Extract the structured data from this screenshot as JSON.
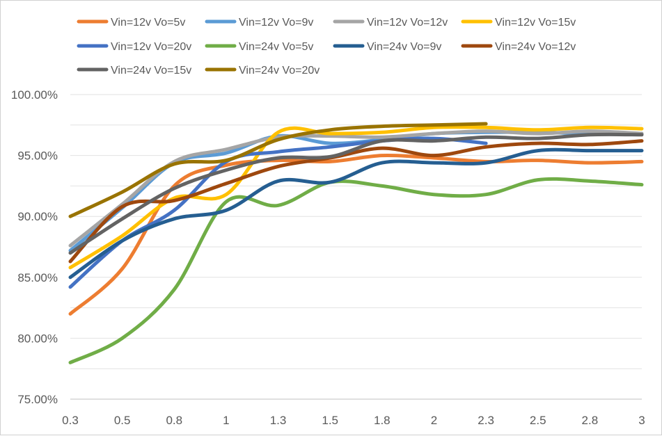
{
  "chart_data": {
    "type": "line",
    "categories": [
      "0.3",
      "0.5",
      "0.8",
      "1",
      "1.3",
      "1.5",
      "1.8",
      "2",
      "2.3",
      "2.5",
      "2.8",
      "3"
    ],
    "ylim": [
      75,
      100
    ],
    "yticks": [
      75,
      80,
      85,
      90,
      95,
      100
    ],
    "ytick_labels": [
      "75.00%",
      "80.00%",
      "85.00%",
      "90.00%",
      "95.00%",
      "100.00%"
    ],
    "grid": "horizontal",
    "legend_position": "top",
    "series": [
      {
        "name": "Vin=12v Vo=5v",
        "color": "#ED7D31",
        "values": [
          82.0,
          85.7,
          92.5,
          94.2,
          94.6,
          94.5,
          95.0,
          94.8,
          94.5,
          94.6,
          94.4,
          94.5
        ]
      },
      {
        "name": "Vin=12v Vo=9v",
        "color": "#5B9BD5",
        "values": [
          87.2,
          90.7,
          94.4,
          95.2,
          96.6,
          96.0,
          96.3,
          96.8,
          96.9,
          96.9,
          96.8,
          96.8
        ]
      },
      {
        "name": "Vin=12v Vo=12v",
        "color": "#A5A5A5",
        "values": [
          87.6,
          91.0,
          94.5,
          95.5,
          96.5,
          96.6,
          96.5,
          96.8,
          97.0,
          96.8,
          97.0,
          96.8
        ]
      },
      {
        "name": "Vin=12v Vo=15v",
        "color": "#FFC000",
        "values": [
          85.8,
          88.4,
          91.5,
          91.8,
          96.9,
          96.8,
          96.9,
          97.3,
          97.3,
          97.1,
          97.3,
          97.2
        ]
      },
      {
        "name": "Vin=12v Vo=20v",
        "color": "#4472C4",
        "values": [
          84.2,
          88.0,
          90.5,
          94.5,
          95.3,
          95.7,
          96.2,
          96.4,
          96.0,
          null,
          null,
          null
        ]
      },
      {
        "name": "Vin=24v Vo=5v",
        "color": "#70AD47",
        "values": [
          78.0,
          80.0,
          84.0,
          91.2,
          90.9,
          92.8,
          92.5,
          91.8,
          91.8,
          93.0,
          92.9,
          92.6
        ]
      },
      {
        "name": "Vin=24v Vo=9v",
        "color": "#255E91",
        "values": [
          85.0,
          88.0,
          89.8,
          90.5,
          92.9,
          92.8,
          94.4,
          94.4,
          94.4,
          95.4,
          95.4,
          95.4
        ]
      },
      {
        "name": "Vin=24v Vo=12v",
        "color": "#9E480E",
        "values": [
          86.3,
          90.8,
          91.3,
          92.7,
          94.1,
          94.8,
          95.6,
          95.0,
          95.7,
          96.0,
          95.9,
          96.2
        ]
      },
      {
        "name": "Vin=24v Vo=15v",
        "color": "#636363",
        "values": [
          87.0,
          89.8,
          92.3,
          93.8,
          94.8,
          94.9,
          96.2,
          96.2,
          96.5,
          96.4,
          96.7,
          96.7
        ]
      },
      {
        "name": "Vin=24v Vo=20v",
        "color": "#997300",
        "values": [
          90.0,
          92.0,
          94.3,
          94.6,
          96.3,
          97.1,
          97.4,
          97.5,
          97.6,
          null,
          null,
          null
        ]
      }
    ]
  }
}
